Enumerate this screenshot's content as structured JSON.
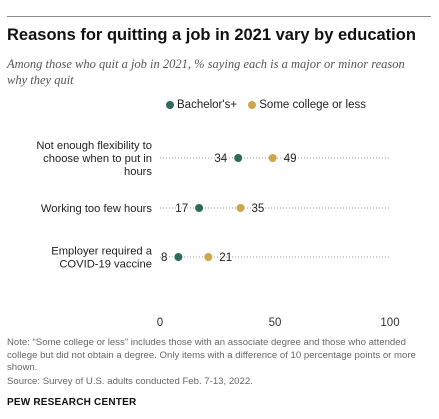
{
  "header": {
    "title": "Reasons for quitting a job in 2021 vary by education",
    "subtitle": "Among those who quit a job in 2021, % saying each is a major or minor reason why they quit"
  },
  "legend": [
    {
      "label": "Bachelor's+",
      "color": "#2e6b5a"
    },
    {
      "label": "Some college or less",
      "color": "#cfa64a"
    }
  ],
  "chart_data": {
    "type": "scatter",
    "style": "dot-plot",
    "categories": [
      [
        "Not enough flexibility to",
        "choose when to put in",
        "hours"
      ],
      [
        "Working too few hours"
      ],
      [
        "Employer required a",
        "COVID-19 vaccine"
      ]
    ],
    "series": [
      {
        "name": "Bachelor's+",
        "values": [
          34,
          17,
          8
        ],
        "color": "#2e6b5a"
      },
      {
        "name": "Some college or less",
        "values": [
          49,
          35,
          21
        ],
        "color": "#cfa64a"
      }
    ],
    "xlim": [
      0,
      100
    ],
    "xticks": [
      "0",
      "50",
      "100"
    ],
    "grid": false
  },
  "footer": {
    "note": "Note: “Some college or less” includes those with an associate degree and those who attended college but did not obtain a degree. Only items with a difference of 10 percentage points or more shown.",
    "source": "Source: Survey of U.S. adults conducted Feb. 7-13, 2022.",
    "brand": "PEW RESEARCH CENTER"
  }
}
